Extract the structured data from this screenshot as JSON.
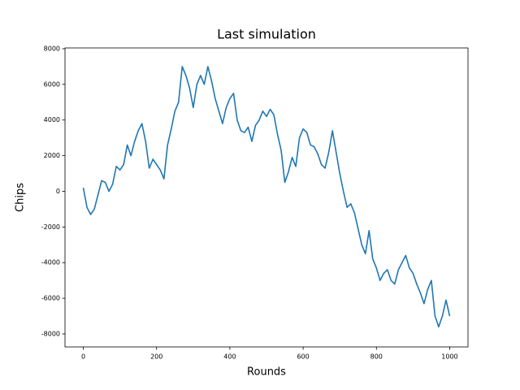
{
  "chart_data": {
    "type": "line",
    "title": "Last simulation",
    "x_label": "Rounds",
    "y_label": "Chips",
    "x": [
      0,
      10,
      20,
      30,
      40,
      50,
      60,
      70,
      80,
      90,
      100,
      110,
      120,
      130,
      140,
      150,
      160,
      170,
      180,
      190,
      200,
      210,
      220,
      230,
      240,
      250,
      260,
      270,
      280,
      290,
      300,
      310,
      320,
      330,
      340,
      350,
      360,
      370,
      380,
      390,
      400,
      410,
      420,
      430,
      440,
      450,
      460,
      470,
      480,
      490,
      500,
      510,
      520,
      530,
      540,
      550,
      560,
      570,
      580,
      590,
      600,
      610,
      620,
      630,
      640,
      650,
      660,
      670,
      680,
      690,
      700,
      710,
      720,
      730,
      740,
      750,
      760,
      770,
      780,
      790,
      800,
      810,
      820,
      830,
      840,
      850,
      860,
      870,
      880,
      890,
      900,
      910,
      920,
      930,
      940,
      950,
      960,
      970,
      980,
      990,
      1000
    ],
    "series": [
      {
        "name": "Chips",
        "color": "#1f77b4",
        "values": [
          200,
          -900,
          -1300,
          -1000,
          -200,
          600,
          500,
          0,
          400,
          1400,
          1200,
          1500,
          2600,
          2000,
          2800,
          3400,
          3800,
          2800,
          1300,
          1800,
          1500,
          1200,
          700,
          2600,
          3500,
          4500,
          5000,
          7000,
          6500,
          5800,
          4700,
          6000,
          6500,
          6000,
          7000,
          6200,
          5200,
          4500,
          3800,
          4700,
          5200,
          5500,
          4000,
          3400,
          3300,
          3600,
          2800,
          3700,
          4000,
          4500,
          4200,
          4600,
          4300,
          3200,
          2300,
          500,
          1100,
          1900,
          1400,
          3000,
          3500,
          3300,
          2600,
          2500,
          2100,
          1500,
          1300,
          2200,
          3400,
          2200,
          1000,
          0,
          -900,
          -700,
          -1200,
          -2100,
          -3000,
          -3500,
          -2200,
          -3800,
          -4300,
          -5000,
          -4600,
          -4400,
          -5000,
          -5200,
          -4400,
          -4000,
          -3600,
          -4300,
          -4600,
          -5200,
          -5700,
          -6300,
          -5500,
          -5000,
          -7000,
          -7600,
          -7000,
          -6100,
          -7000
        ]
      }
    ],
    "xlim": [
      -50,
      1050
    ],
    "ylim": [
      -8730,
      8045
    ],
    "xticks": [
      0,
      200,
      400,
      600,
      800,
      1000
    ],
    "yticks": [
      -8000,
      -6000,
      -4000,
      -2000,
      0,
      2000,
      4000,
      6000,
      8000
    ]
  }
}
